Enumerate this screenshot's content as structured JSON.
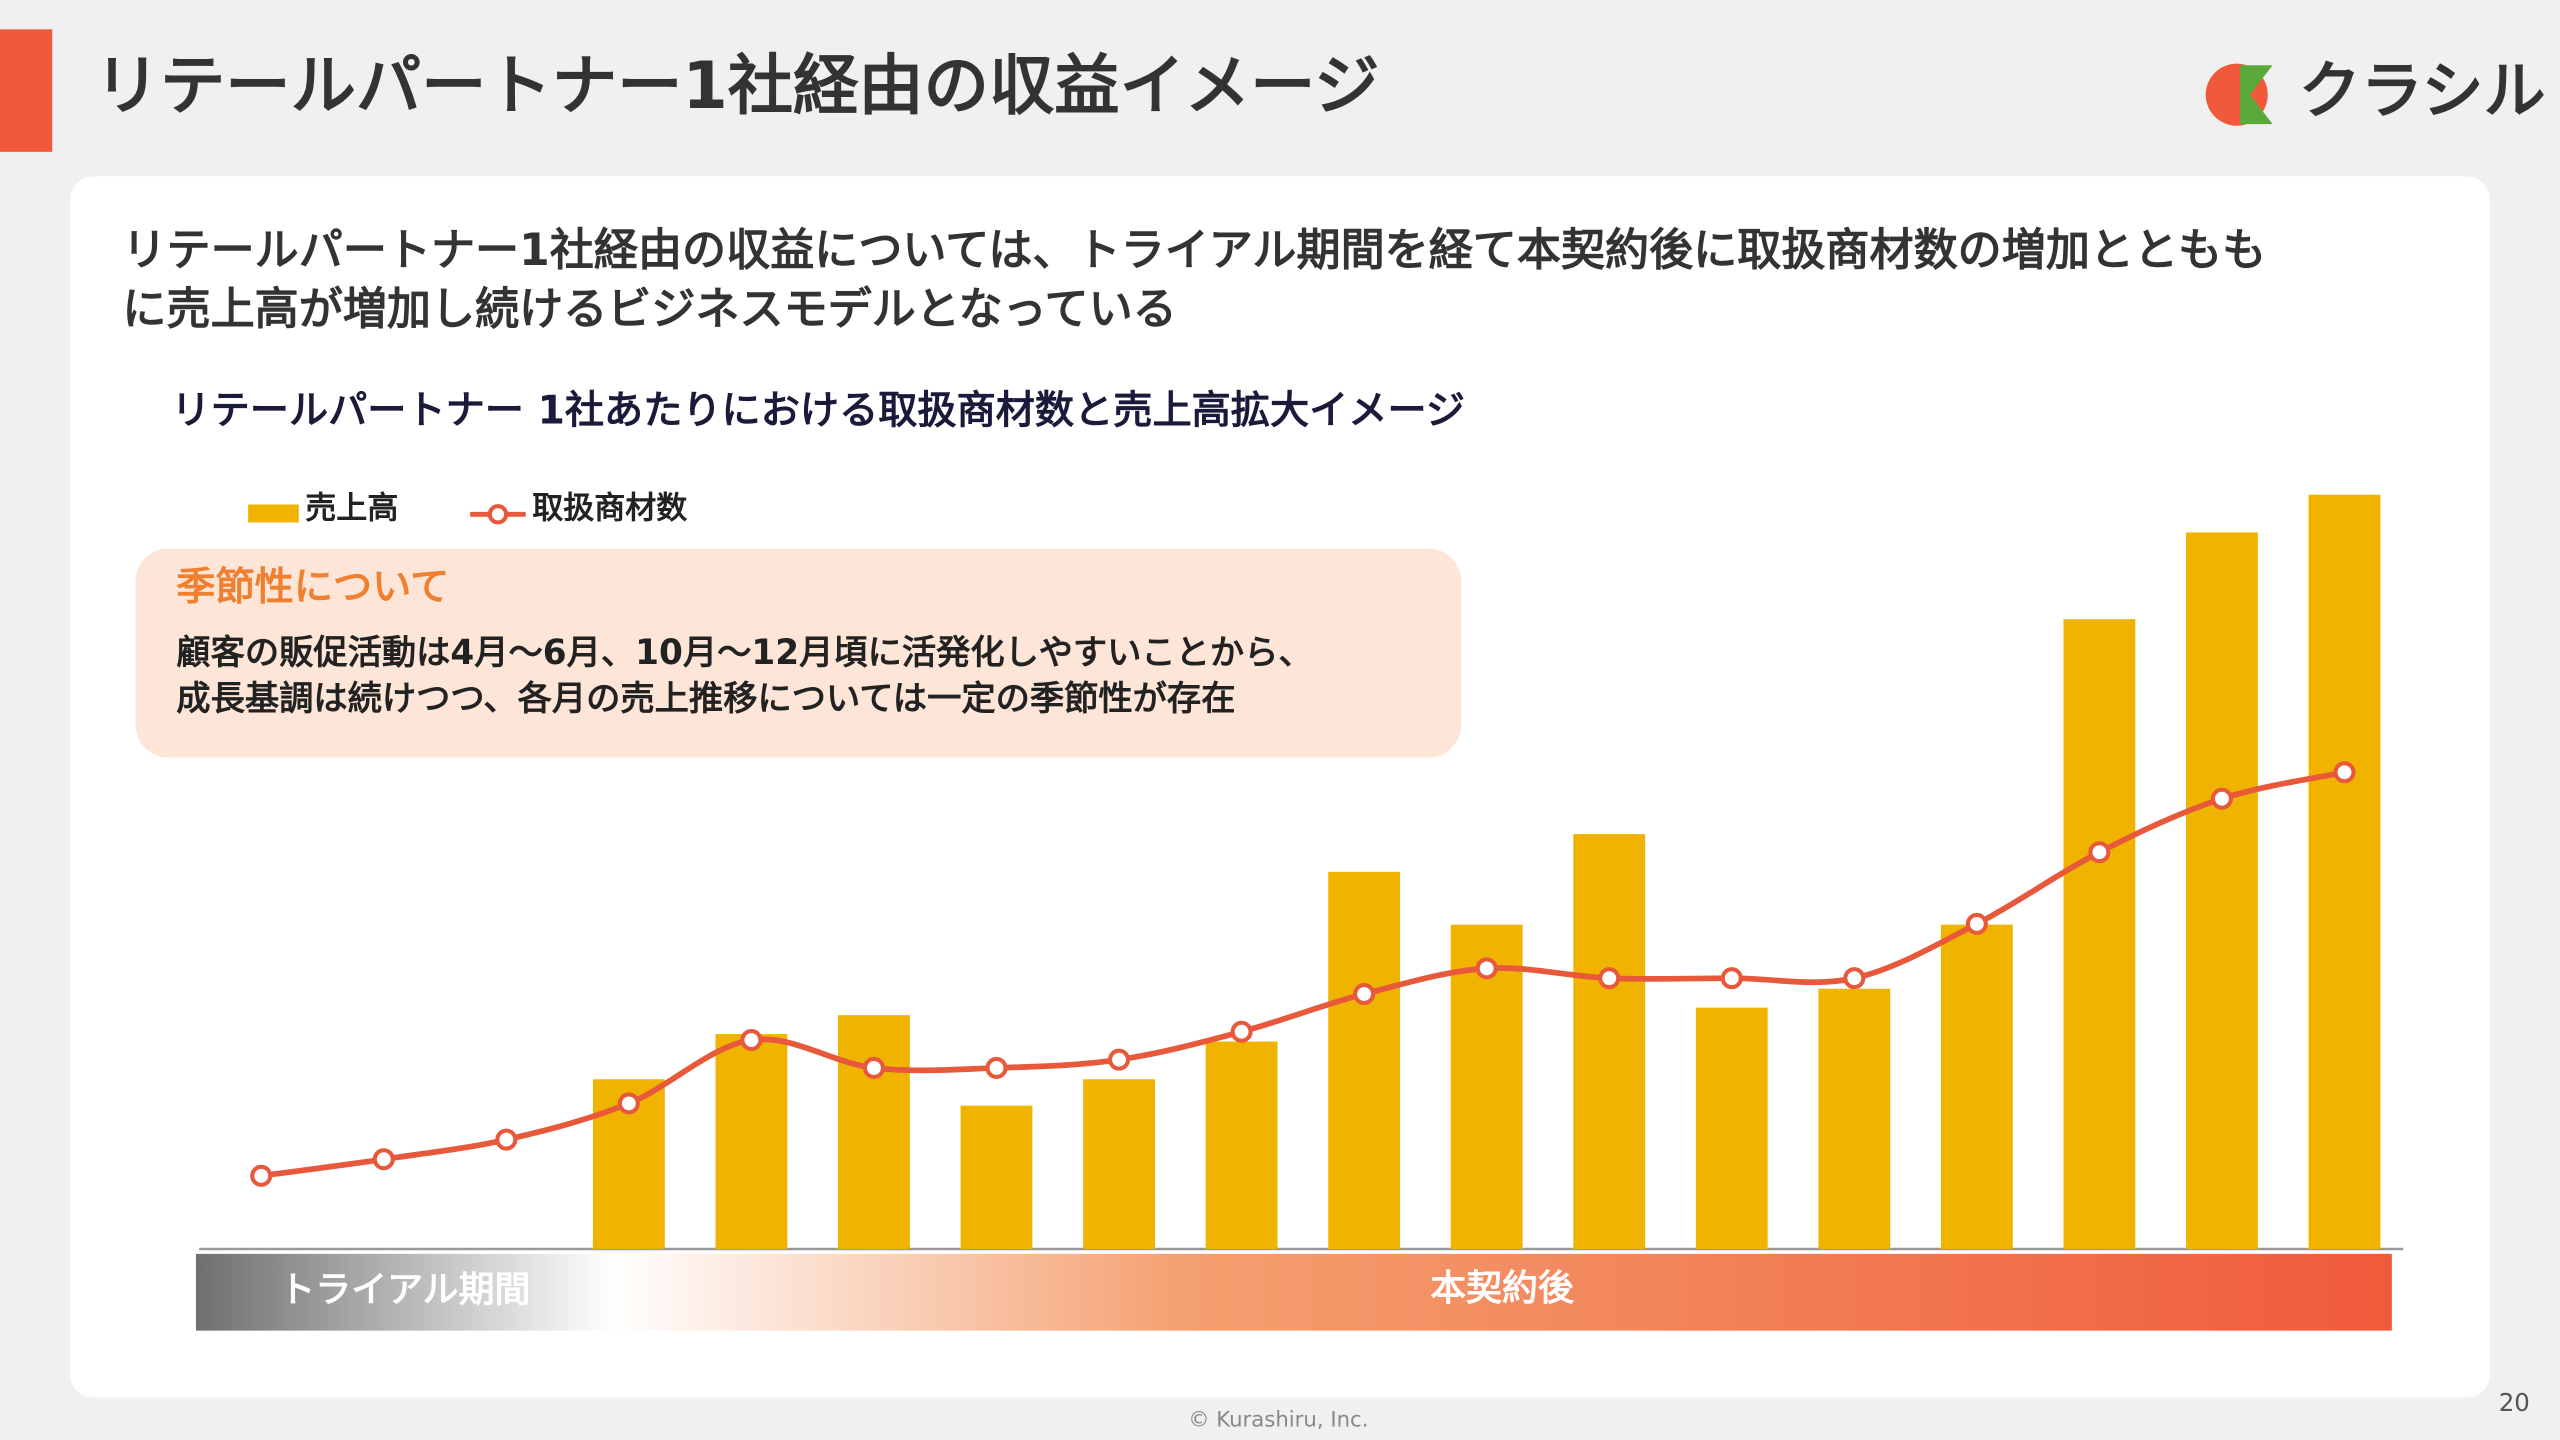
{
  "page": {
    "title": "リテールパートナー1社経由の収益イメージ",
    "logo": "クラシル",
    "heading": [
      "リテールパートナー1社経由の収益については、トライアル期間を経て本契約後に取扱商材数の増加とともも",
      "に売上高が増加し続けるビジネスモデルとなっている"
    ],
    "callout": {
      "title": "季節性について",
      "lines": [
        "顧客の販促活動は4月～6月、10月～12月頃に活発化しやすいことから、",
        "成長基調は続けつつ、各月の売上推移については一定の季節性が存在"
      ]
    },
    "phases": [
      "トライアル期間",
      "本契約後"
    ],
    "footer": "© Kurashiru, Inc.",
    "page_number": "20"
  },
  "chart_data": {
    "type": "bar_line",
    "title": "リテールパートナー 1社あたりにおける取扱商材数と売上高拡大イメージ",
    "categories": [
      null,
      null,
      null,
      null,
      null,
      null,
      null,
      null,
      null,
      null,
      null,
      null,
      null,
      null,
      null,
      null,
      null,
      null
    ],
    "ylim": [
      0,
      100
    ],
    "series": [
      {
        "name": "売上高",
        "type": "bar",
        "color": "#f0b400",
        "values": [
          null,
          null,
          null,
          22.5,
          28.5,
          31,
          19,
          22.5,
          27.5,
          50,
          43,
          55,
          32,
          34.5,
          43,
          83.5,
          95,
          100
        ]
      },
      {
        "name": "取扱商材数",
        "type": "line",
        "color": "#e8583a",
        "values": [
          9.7,
          11.9,
          14.5,
          19.3,
          27.7,
          24,
          24,
          25.1,
          28.8,
          33.8,
          37.2,
          35.9,
          35.9,
          35.9,
          43.1,
          52.6,
          59.7,
          63.2
        ]
      }
    ]
  }
}
